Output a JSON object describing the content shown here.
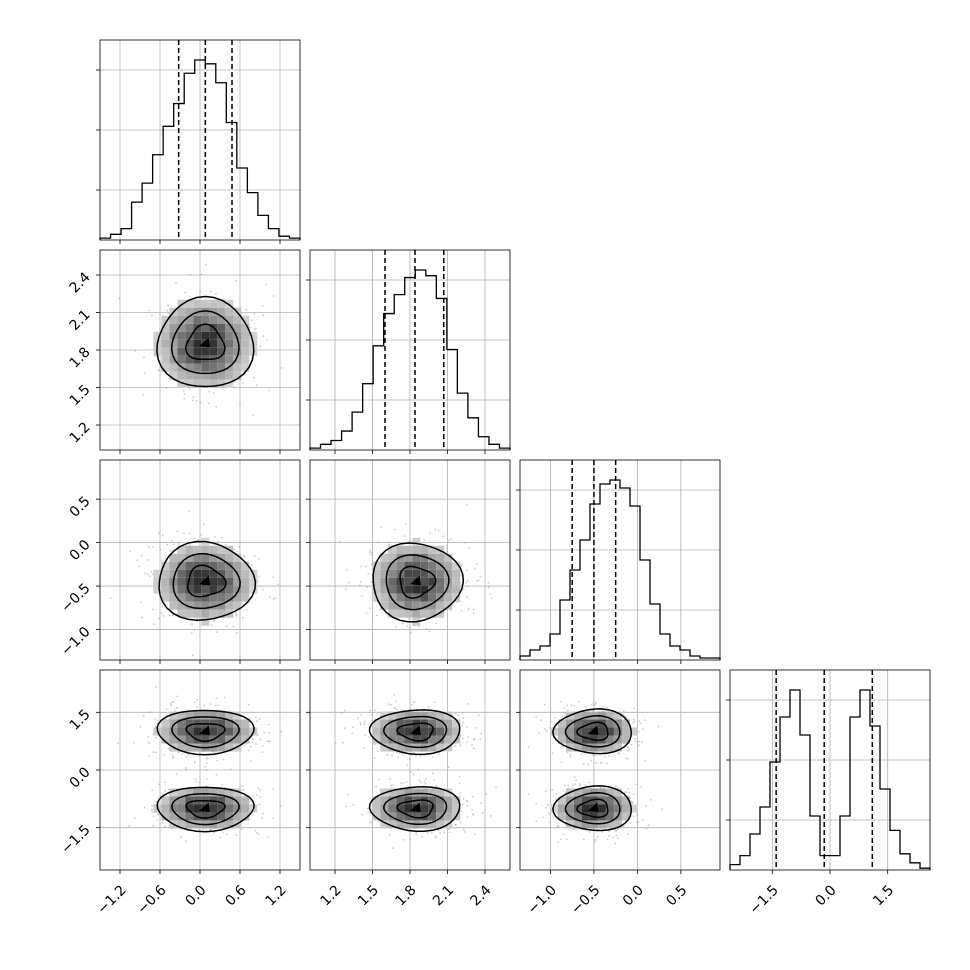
{
  "chart_data": {
    "type": "corner",
    "grid": true,
    "parameters": [
      {
        "index": 0,
        "range": [
          -1.5,
          1.5
        ],
        "ticks": [
          -1.2,
          -0.6,
          0.0,
          0.6,
          1.2
        ],
        "tick_labels": [
          "−1.2",
          "−0.6",
          "0.0",
          "0.6",
          "1.2"
        ],
        "quantiles": [
          -0.32,
          0.08,
          0.48
        ]
      },
      {
        "index": 1,
        "range": [
          1.0,
          2.6
        ],
        "ticks": [
          1.2,
          1.5,
          1.8,
          2.1,
          2.4
        ],
        "tick_labels": [
          "1.2",
          "1.5",
          "1.8",
          "2.1",
          "2.4"
        ],
        "quantiles": [
          1.6,
          1.84,
          2.07
        ]
      },
      {
        "index": 2,
        "range": [
          -1.35,
          0.95
        ],
        "ticks": [
          -1.0,
          -0.5,
          0.0,
          0.5
        ],
        "tick_labels": [
          "−1.0",
          "−0.5",
          "0.0",
          "0.5"
        ],
        "quantiles": [
          -0.75,
          -0.5,
          -0.25
        ]
      },
      {
        "index": 3,
        "range": [
          -2.6,
          2.6
        ],
        "ticks": [
          -1.5,
          0.0,
          1.5
        ],
        "tick_labels": [
          "−1.5",
          "0.0",
          "1.5"
        ],
        "quantiles": [
          -1.4,
          -0.15,
          1.1
        ]
      }
    ],
    "histograms": [
      {
        "param": 0,
        "counts": [
          0.01,
          0.03,
          0.06,
          0.2,
          0.3,
          0.45,
          0.6,
          0.72,
          0.88,
          0.95,
          0.93,
          0.83,
          0.62,
          0.38,
          0.25,
          0.13,
          0.06,
          0.02,
          0.01
        ]
      },
      {
        "param": 1,
        "counts": [
          0.01,
          0.03,
          0.05,
          0.1,
          0.2,
          0.35,
          0.55,
          0.72,
          0.82,
          0.91,
          0.95,
          0.92,
          0.8,
          0.53,
          0.3,
          0.17,
          0.07,
          0.03,
          0.01
        ]
      },
      {
        "param": 2,
        "counts": [
          0.02,
          0.05,
          0.07,
          0.13,
          0.3,
          0.45,
          0.6,
          0.78,
          0.88,
          0.9,
          0.86,
          0.77,
          0.5,
          0.28,
          0.13,
          0.07,
          0.05,
          0.02,
          0.01,
          0.01
        ]
      },
      {
        "param": 3,
        "counts": [
          0.03,
          0.08,
          0.2,
          0.35,
          0.6,
          0.85,
          1.0,
          0.75,
          0.3,
          0.08,
          0.08,
          0.3,
          0.85,
          1.0,
          0.8,
          0.45,
          0.22,
          0.09,
          0.04,
          0.01
        ]
      }
    ],
    "pairs": [
      {
        "x": 1,
        "y": 0,
        "modes": [
          {
            "x": 0.08,
            "y": 1.85,
            "sx": 0.4,
            "sy": 0.2
          }
        ]
      },
      {
        "x": 2,
        "y": 0,
        "modes": [
          {
            "x": 0.08,
            "y": -0.45,
            "sx": 0.4,
            "sy": 0.25
          }
        ]
      },
      {
        "x": 2,
        "y": 1,
        "modes": [
          {
            "x": 1.85,
            "y": -0.45,
            "sx": 0.2,
            "sy": 0.25
          }
        ]
      },
      {
        "x": 3,
        "y": 0,
        "modes": [
          {
            "x": 0.08,
            "y": 1.0,
            "sx": 0.4,
            "sy": 0.32
          },
          {
            "x": 0.08,
            "y": -1.0,
            "sx": 0.4,
            "sy": 0.32
          }
        ]
      },
      {
        "x": 3,
        "y": 1,
        "modes": [
          {
            "x": 1.85,
            "y": 1.0,
            "sx": 0.2,
            "sy": 0.32
          },
          {
            "x": 1.85,
            "y": -1.0,
            "sx": 0.2,
            "sy": 0.32
          }
        ]
      },
      {
        "x": 3,
        "y": 2,
        "modes": [
          {
            "x": -0.5,
            "y": 1.0,
            "sx": 0.25,
            "sy": 0.32
          },
          {
            "x": -0.5,
            "y": -1.0,
            "sx": 0.25,
            "sy": 0.32
          }
        ]
      }
    ],
    "contour_levels_sigma": [
      0.7,
      1.25,
      1.8
    ]
  }
}
